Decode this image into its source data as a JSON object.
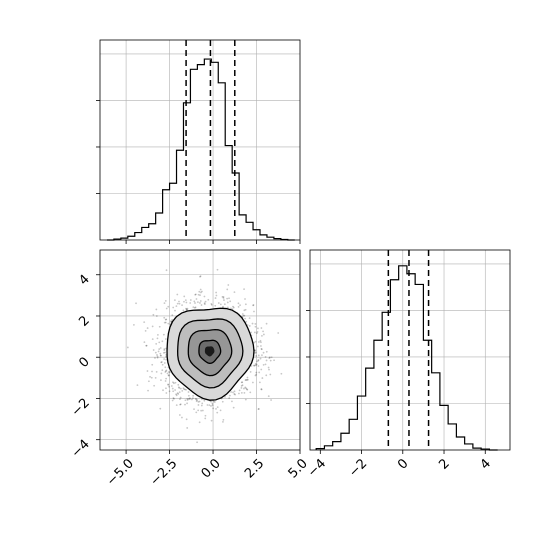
{
  "chart_data": [
    {
      "panel": "marginal-x",
      "type": "histogram",
      "title": "",
      "xlabel": "",
      "ylabel": "",
      "xlim": [
        -6.5,
        5.0
      ],
      "ylim": [
        0,
        0.43
      ],
      "grid": true,
      "bin_edges": [
        -6.1,
        -5.7,
        -5.3,
        -4.9,
        -4.5,
        -4.1,
        -3.7,
        -3.3,
        -2.9,
        -2.5,
        -2.1,
        -1.7,
        -1.3,
        -0.9,
        -0.5,
        -0.1,
        0.3,
        0.7,
        1.1,
        1.5,
        1.9,
        2.3,
        2.7,
        3.1,
        3.5,
        3.9,
        4.3,
        4.7
      ],
      "values": [
        0.0,
        0.002,
        0.004,
        0.008,
        0.016,
        0.027,
        0.035,
        0.058,
        0.108,
        0.122,
        0.193,
        0.295,
        0.367,
        0.377,
        0.389,
        0.382,
        0.338,
        0.203,
        0.144,
        0.054,
        0.038,
        0.022,
        0.011,
        0.006,
        0.003,
        0.001,
        0.0
      ],
      "quantile_lines": [
        -1.55,
        -0.15,
        1.25
      ]
    },
    {
      "panel": "joint-xy",
      "type": "scatter-contour",
      "xlim": [
        -6.5,
        5.0
      ],
      "ylim": [
        -4.5,
        5.2
      ],
      "x_ticks": [
        -5.0,
        -2.5,
        0.0,
        2.5,
        5.0
      ],
      "x_tick_labels": [
        "−5.0",
        "−2.5",
        "0.0",
        "2.5",
        "5.0"
      ],
      "y_ticks": [
        -4,
        -2,
        0,
        2,
        4
      ],
      "y_tick_labels": [
        "−4",
        "−2",
        "0",
        "2",
        "4"
      ],
      "grid": true,
      "center": [
        -0.2,
        0.3
      ],
      "spread": [
        1.25,
        1.1
      ],
      "contour_levels_sigma": [
        0.5,
        1.0,
        1.5,
        2.0
      ],
      "n_points": 3000
    },
    {
      "panel": "marginal-y",
      "type": "histogram",
      "xlim": [
        -4.5,
        5.2
      ],
      "ylim": [
        0,
        0.43
      ],
      "x_ticks": [
        -4,
        -2,
        0,
        2,
        4
      ],
      "x_tick_labels": [
        "−4",
        "−2",
        "0",
        "2",
        "4"
      ],
      "grid": true,
      "bin_edges": [
        -4.2,
        -3.8,
        -3.4,
        -3.0,
        -2.6,
        -2.2,
        -1.8,
        -1.4,
        -1.0,
        -0.6,
        -0.2,
        0.2,
        0.6,
        1.0,
        1.4,
        1.8,
        2.2,
        2.6,
        3.0,
        3.4,
        3.8,
        4.2,
        4.6
      ],
      "values": [
        0.003,
        0.009,
        0.018,
        0.036,
        0.066,
        0.116,
        0.176,
        0.236,
        0.296,
        0.366,
        0.396,
        0.379,
        0.356,
        0.236,
        0.166,
        0.096,
        0.056,
        0.028,
        0.013,
        0.004,
        0.002,
        0.0
      ],
      "quantile_lines": [
        -0.7,
        0.3,
        1.25
      ]
    }
  ]
}
